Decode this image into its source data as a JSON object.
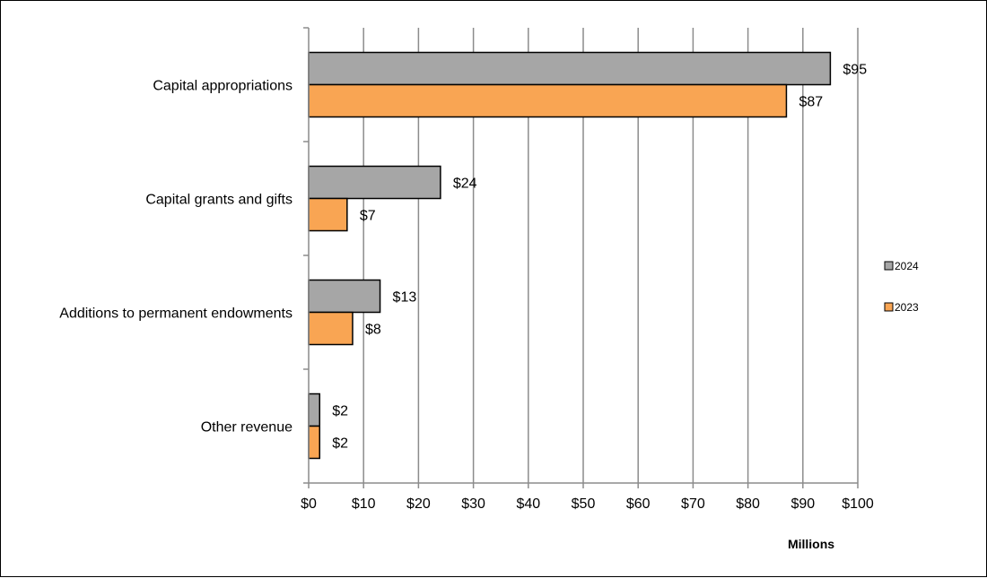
{
  "chart_data": {
    "type": "bar",
    "orientation": "horizontal",
    "categories": [
      "Capital appropriations",
      "Capital grants and gifts",
      "Additions to permanent endowments",
      "Other revenue"
    ],
    "series": [
      {
        "name": "2024",
        "color": "#A6A6A6",
        "values": [
          95,
          24,
          13,
          2
        ],
        "labels": [
          "$95",
          "$24",
          "$13",
          "$2"
        ]
      },
      {
        "name": "2023",
        "color": "#F9A553",
        "values": [
          87,
          7,
          8,
          2
        ],
        "labels": [
          "$87",
          "$7",
          "$8",
          "$2"
        ]
      }
    ],
    "xlabel": "Millions",
    "xlim": [
      0,
      100
    ],
    "xticks": [
      0,
      10,
      20,
      30,
      40,
      50,
      60,
      70,
      80,
      90,
      100
    ],
    "xtick_labels": [
      "$0",
      "$10",
      "$20",
      "$30",
      "$40",
      "$50",
      "$60",
      "$70",
      "$80",
      "$90",
      "$100"
    ],
    "grid": "vertical",
    "legend_position": "right"
  }
}
